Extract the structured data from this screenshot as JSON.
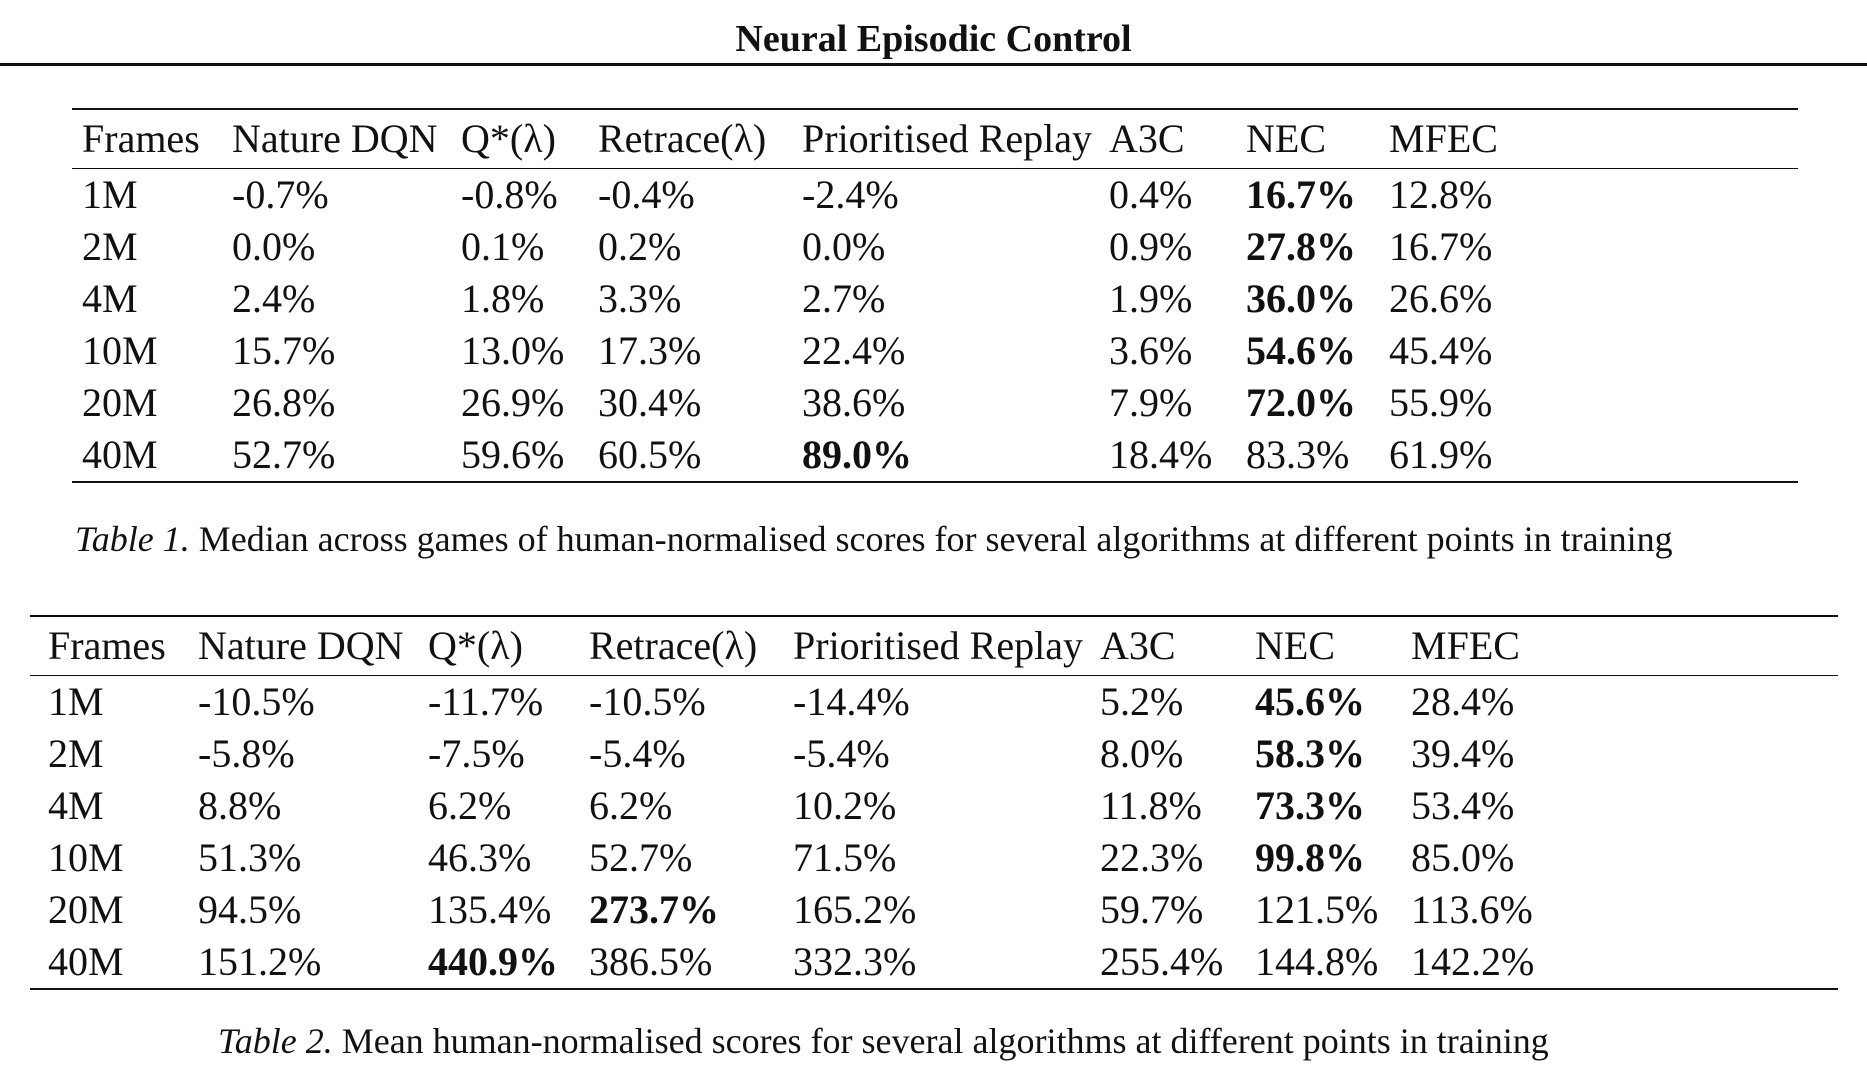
{
  "running_head": "Neural Episodic Control",
  "columns": [
    "Frames",
    "Nature DQN",
    "Q*(λ)",
    "Retrace(λ)",
    "Prioritised Replay",
    "A3C",
    "NEC",
    "MFEC"
  ],
  "table1": {
    "caption_label": "Table 1.",
    "caption_text": " Median across games of human-normalised scores for several algorithms at different points in training",
    "rows": [
      {
        "cells": [
          "1M",
          "-0.7%",
          "-0.8%",
          "-0.4%",
          "-2.4%",
          "0.4%",
          "16.7%",
          "12.8%"
        ],
        "bold": [
          6
        ]
      },
      {
        "cells": [
          "2M",
          "0.0%",
          "0.1%",
          "0.2%",
          "0.0%",
          "0.9%",
          "27.8%",
          "16.7%"
        ],
        "bold": [
          6
        ]
      },
      {
        "cells": [
          "4M",
          "2.4%",
          "1.8%",
          "3.3%",
          "2.7%",
          "1.9%",
          "36.0%",
          "26.6%"
        ],
        "bold": [
          6
        ]
      },
      {
        "cells": [
          "10M",
          "15.7%",
          "13.0%",
          "17.3%",
          "22.4%",
          "3.6%",
          "54.6%",
          "45.4%"
        ],
        "bold": [
          6
        ]
      },
      {
        "cells": [
          "20M",
          "26.8%",
          "26.9%",
          "30.4%",
          "38.6%",
          "7.9%",
          "72.0%",
          "55.9%"
        ],
        "bold": [
          6
        ]
      },
      {
        "cells": [
          "40M",
          "52.7%",
          "59.6%",
          "60.5%",
          "89.0%",
          "18.4%",
          "83.3%",
          "61.9%"
        ],
        "bold": [
          4
        ]
      }
    ]
  },
  "table2": {
    "caption_label": "Table 2.",
    "caption_text": " Mean human-normalised scores for several algorithms at different points in training",
    "rows": [
      {
        "cells": [
          "1M",
          "-10.5%",
          "-11.7%",
          "-10.5%",
          "-14.4%",
          "5.2%",
          "45.6%",
          "28.4%"
        ],
        "bold": [
          6
        ]
      },
      {
        "cells": [
          "2M",
          "-5.8%",
          "-7.5%",
          "-5.4%",
          "-5.4%",
          "8.0%",
          "58.3%",
          "39.4%"
        ],
        "bold": [
          6
        ]
      },
      {
        "cells": [
          "4M",
          "8.8%",
          "6.2%",
          "6.2%",
          "10.2%",
          "11.8%",
          "73.3%",
          "53.4%"
        ],
        "bold": [
          6
        ]
      },
      {
        "cells": [
          "10M",
          "51.3%",
          "46.3%",
          "52.7%",
          "71.5%",
          "22.3%",
          "99.8%",
          "85.0%"
        ],
        "bold": [
          6
        ]
      },
      {
        "cells": [
          "20M",
          "94.5%",
          "135.4%",
          "273.7%",
          "165.2%",
          "59.7%",
          "121.5%",
          "113.6%"
        ],
        "bold": [
          3
        ]
      },
      {
        "cells": [
          "40M",
          "151.2%",
          "440.9%",
          "386.5%",
          "332.3%",
          "255.4%",
          "144.8%",
          "142.2%"
        ],
        "bold": [
          2
        ]
      }
    ]
  }
}
